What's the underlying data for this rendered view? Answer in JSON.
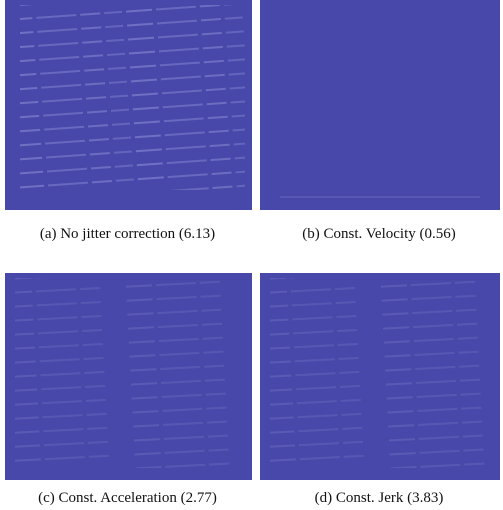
{
  "figure": {
    "panels": [
      {
        "caption": "(a) No jitter correction (6.13)"
      },
      {
        "caption": "(b) Const. Velocity (0.56)"
      },
      {
        "caption": "(c) Const. Acceleration (2.77)"
      },
      {
        "caption": "(d) Const. Jerk (3.83)"
      }
    ]
  }
}
